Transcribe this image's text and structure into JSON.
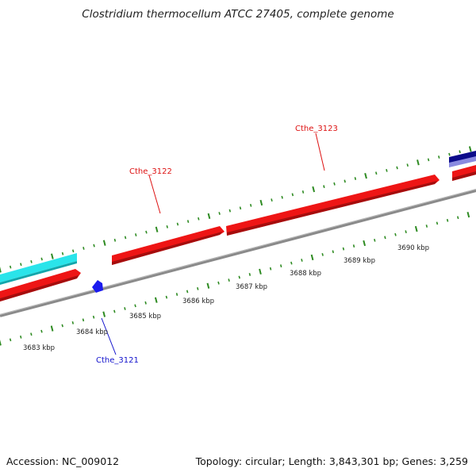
{
  "title": "Clostridium thermocellum ATCC 27405, complete genome",
  "footer": {
    "accession": "Accession: NC_009012",
    "stats": "Topology: circular; Length: 3,843,301 bp; Genes: 3,259"
  },
  "colors": {
    "tick": "#2e8b22",
    "backbone": "#888888",
    "forward_gene": "#ee1111",
    "reverse_gene": "#1a1aee",
    "cyan_feature": "#22e0e8",
    "navy_feature": "#0b0b8a",
    "lavender_feature": "#8a8ae0",
    "label_red": "#dd1111",
    "label_blue": "#1111cc"
  },
  "scale_labels": [
    "3683 kbp",
    "3684 kbp",
    "3685 kbp",
    "3686 kbp",
    "3687 kbp",
    "3688 kbp",
    "3689 kbp",
    "3690 kbp"
  ],
  "gene_labels": [
    {
      "name": "Cthe_3122",
      "strand": "forward"
    },
    {
      "name": "Cthe_3123",
      "strand": "forward"
    },
    {
      "name": "Cthe_3121",
      "strand": "reverse"
    }
  ]
}
